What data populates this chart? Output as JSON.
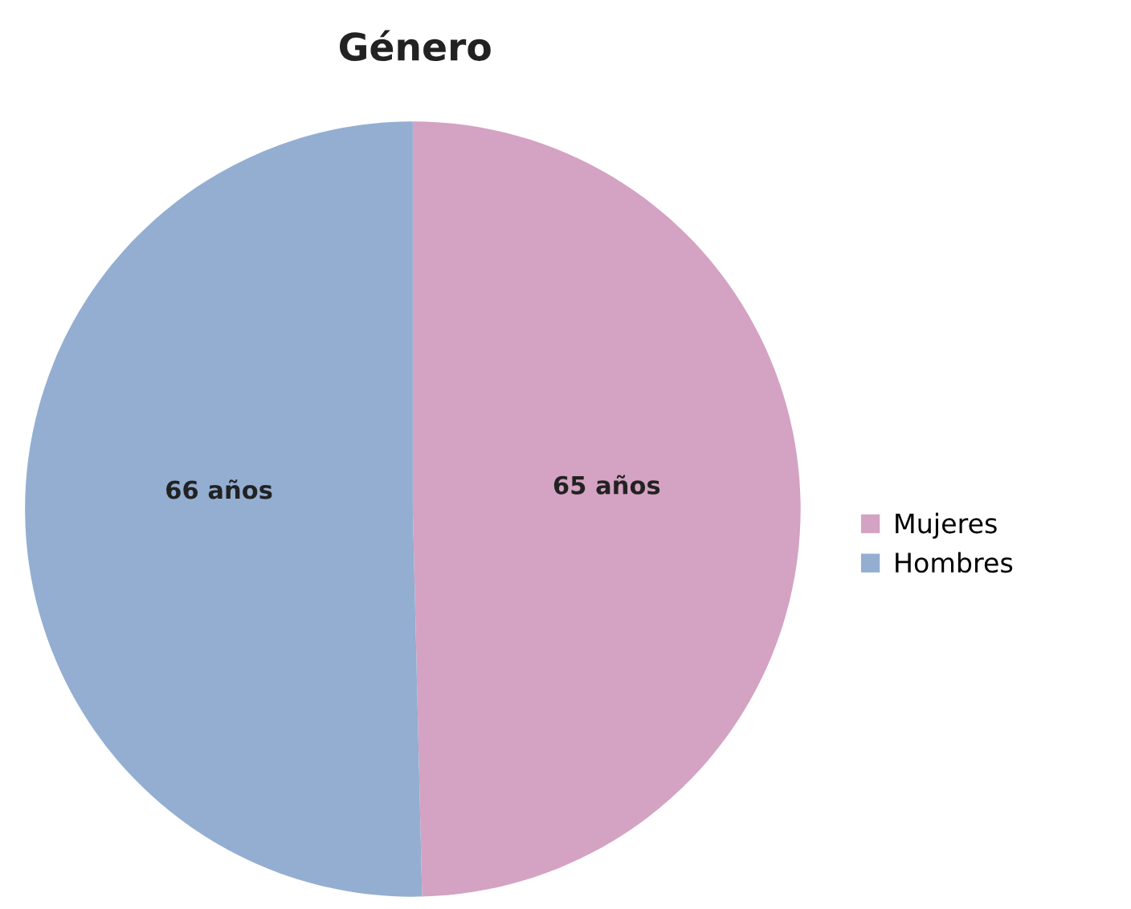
{
  "chart_data": {
    "type": "pie",
    "title": "Género",
    "categories": [
      "Mujeres",
      "Hombres"
    ],
    "values": [
      65,
      66
    ],
    "colors": [
      "#d4a2c2",
      "#93aed1"
    ],
    "value_labels": [
      "65 años",
      "66 años"
    ],
    "legend": "right"
  }
}
